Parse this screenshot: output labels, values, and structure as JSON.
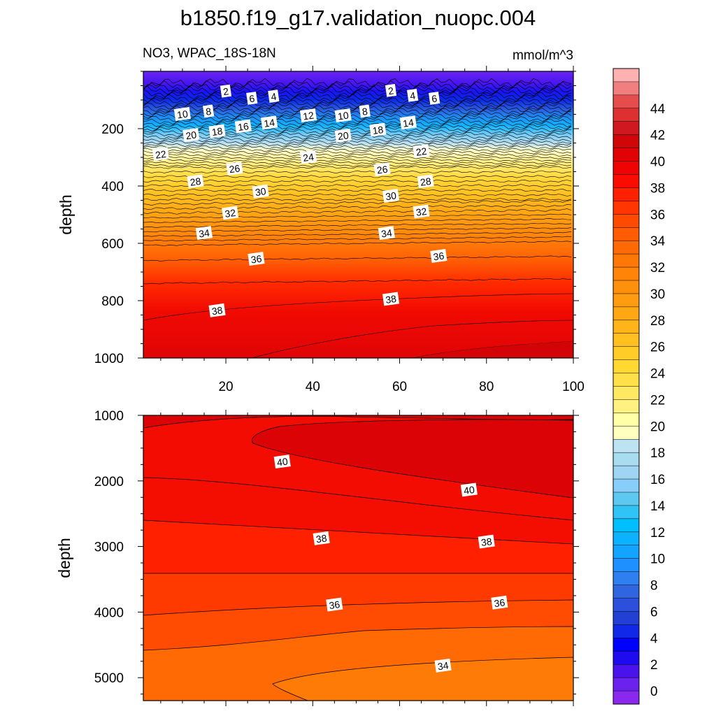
{
  "figure": {
    "title": "b1850.f19_g17.validation_nuopc.004",
    "variable_region": "NO3, WPAC_18S-18N",
    "units": "mmol/m^3"
  },
  "chart_data": [
    {
      "type": "heatmap",
      "panel": "upper",
      "x_range": [
        1,
        100
      ],
      "x_ticks": [
        20,
        40,
        60,
        80,
        100
      ],
      "y_range": [
        0,
        1000
      ],
      "y_reversed": true,
      "y_ticks": [
        200,
        400,
        600,
        800,
        1000
      ],
      "ylabel": "depth",
      "contour_labels": [
        {
          "x": 20,
          "y": 70,
          "text": "2"
        },
        {
          "x": 26,
          "y": 95,
          "text": "6"
        },
        {
          "x": 31,
          "y": 88,
          "text": "4"
        },
        {
          "x": 10,
          "y": 150,
          "text": "10"
        },
        {
          "x": 16,
          "y": 140,
          "text": "8"
        },
        {
          "x": 39,
          "y": 155,
          "text": "12"
        },
        {
          "x": 47,
          "y": 155,
          "text": "10"
        },
        {
          "x": 52,
          "y": 140,
          "text": "8"
        },
        {
          "x": 58,
          "y": 68,
          "text": "2"
        },
        {
          "x": 63,
          "y": 85,
          "text": "4"
        },
        {
          "x": 68,
          "y": 95,
          "text": "6"
        },
        {
          "x": 12,
          "y": 223,
          "text": "20"
        },
        {
          "x": 18,
          "y": 210,
          "text": "18"
        },
        {
          "x": 24,
          "y": 193,
          "text": "16"
        },
        {
          "x": 30,
          "y": 180,
          "text": "14"
        },
        {
          "x": 47,
          "y": 225,
          "text": "20"
        },
        {
          "x": 55,
          "y": 205,
          "text": "18"
        },
        {
          "x": 62,
          "y": 180,
          "text": "14"
        },
        {
          "x": 5,
          "y": 290,
          "text": "22"
        },
        {
          "x": 39,
          "y": 300,
          "text": "24"
        },
        {
          "x": 65,
          "y": 280,
          "text": "22"
        },
        {
          "x": 22,
          "y": 340,
          "text": "26"
        },
        {
          "x": 56,
          "y": 343,
          "text": "26"
        },
        {
          "x": 13,
          "y": 385,
          "text": "28"
        },
        {
          "x": 66,
          "y": 385,
          "text": "28"
        },
        {
          "x": 28,
          "y": 420,
          "text": "30"
        },
        {
          "x": 58,
          "y": 435,
          "text": "30"
        },
        {
          "x": 21,
          "y": 495,
          "text": "32"
        },
        {
          "x": 65,
          "y": 490,
          "text": "32"
        },
        {
          "x": 15,
          "y": 565,
          "text": "34"
        },
        {
          "x": 57,
          "y": 565,
          "text": "34"
        },
        {
          "x": 27,
          "y": 655,
          "text": "36"
        },
        {
          "x": 69,
          "y": 645,
          "text": "36"
        },
        {
          "x": 18,
          "y": 835,
          "text": "38"
        },
        {
          "x": 58,
          "y": 795,
          "text": "38"
        }
      ]
    },
    {
      "type": "heatmap",
      "panel": "lower",
      "x_range": [
        1,
        100
      ],
      "y_range": [
        1000,
        5350
      ],
      "y_reversed": true,
      "y_ticks": [
        1000,
        2000,
        3000,
        4000,
        5000
      ],
      "ylabel": "depth",
      "contour_labels": [
        {
          "x": 33,
          "y": 1710,
          "text": "40"
        },
        {
          "x": 76,
          "y": 2140,
          "text": "40"
        },
        {
          "x": 42,
          "y": 2880,
          "text": "38"
        },
        {
          "x": 80,
          "y": 2930,
          "text": "38"
        },
        {
          "x": 45,
          "y": 3890,
          "text": "36"
        },
        {
          "x": 83,
          "y": 3860,
          "text": "36"
        },
        {
          "x": 70,
          "y": 4820,
          "text": "34"
        }
      ]
    }
  ],
  "colorbar": {
    "labels": [
      "0",
      "2",
      "4",
      "6",
      "8",
      "10",
      "12",
      "14",
      "16",
      "18",
      "20",
      "22",
      "24",
      "26",
      "28",
      "30",
      "32",
      "34",
      "36",
      "38",
      "40",
      "42",
      "44"
    ],
    "colors": [
      "#8b28ef",
      "#6b22ee",
      "#4a13ee",
      "#1f0bf0",
      "#0000ff",
      "#1228e8",
      "#2240d6",
      "#2c50dc",
      "#3065e0",
      "#2f7ff0",
      "#1e90ff",
      "#13a4ff",
      "#0bb2ff",
      "#00bfff",
      "#2fc4f5",
      "#5ec9f0",
      "#87cefa",
      "#9dd5f3",
      "#a8dcf0",
      "#bde2f2",
      "#ffffc0",
      "#ffffa8",
      "#fff280",
      "#ffe862",
      "#ffe048",
      "#ffd830",
      "#ffcc28",
      "#ffc020",
      "#ffb41a",
      "#ffa813",
      "#ff9c10",
      "#ff900c",
      "#ff8408",
      "#ff7806",
      "#ff6a05",
      "#ff5c04",
      "#ff4a02",
      "#ff3601",
      "#ff2000",
      "#fb0c00",
      "#ef0303",
      "#e00205",
      "#d10608",
      "#cf1820",
      "#de3030",
      "#e64c4c",
      "#f27f7f",
      "#ffb0b0"
    ]
  }
}
